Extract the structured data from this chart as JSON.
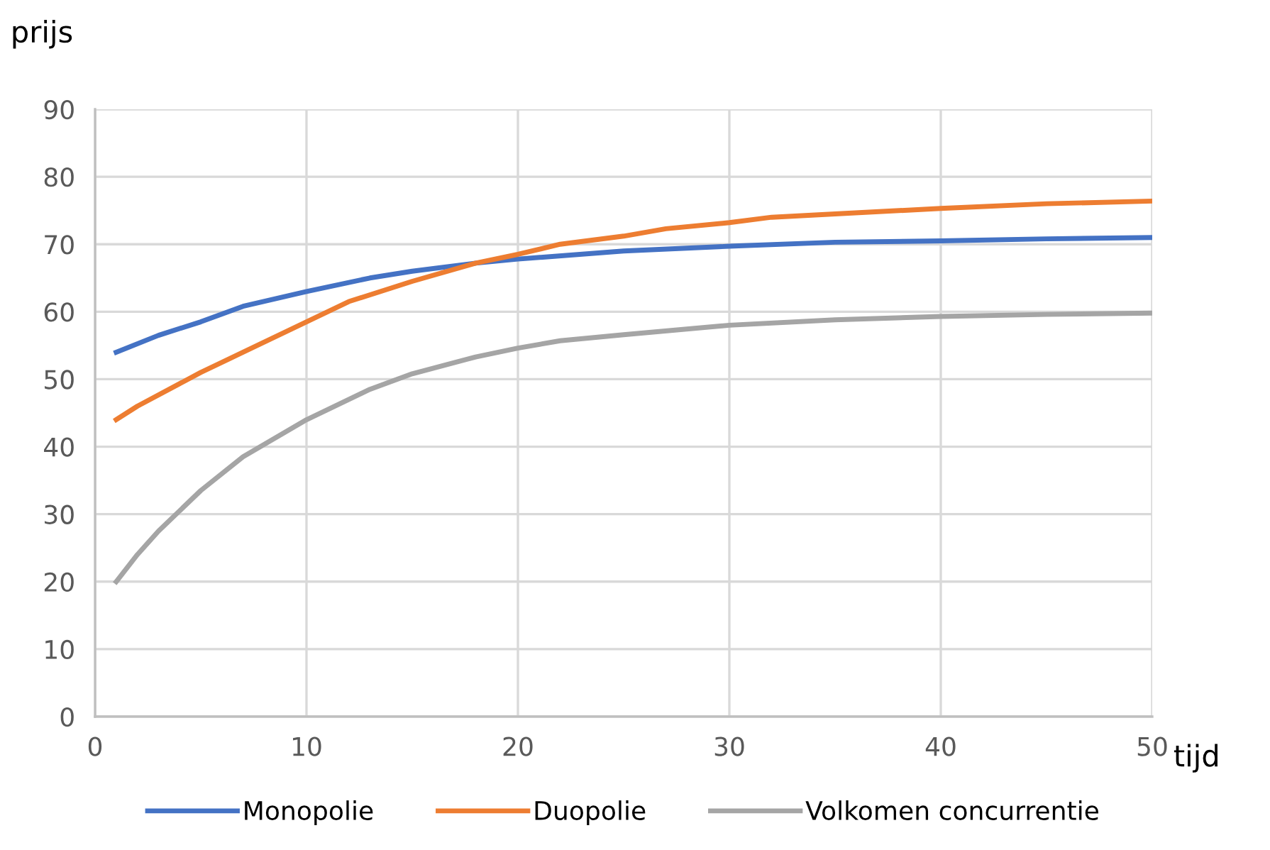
{
  "chart_data": {
    "type": "line",
    "xlabel": "tijd",
    "ylabel": "prijs",
    "xlim": [
      0,
      50
    ],
    "ylim": [
      0,
      90
    ],
    "xticks": [
      0,
      10,
      20,
      30,
      40,
      50
    ],
    "yticks": [
      0,
      10,
      20,
      30,
      40,
      50,
      60,
      70,
      80,
      90
    ],
    "grid": true,
    "legend": "bottom",
    "marker": "none",
    "line_style": "solid",
    "series": [
      {
        "name": "Monopolie",
        "color": "#4472c4",
        "x": [
          1,
          3,
          5,
          7,
          10,
          13,
          15,
          18,
          20,
          25,
          30,
          35,
          40,
          45,
          50
        ],
        "values": [
          54,
          56.5,
          58.5,
          60.8,
          63,
          65,
          66,
          67.2,
          67.8,
          69,
          69.7,
          70.3,
          70.5,
          70.8,
          71
        ]
      },
      {
        "name": "Duopolie",
        "color": "#ed7d31",
        "x": [
          1,
          2,
          5,
          7,
          10,
          12,
          15,
          18,
          20,
          22,
          25,
          27,
          30,
          32,
          35,
          40,
          45,
          50
        ],
        "values": [
          44,
          46,
          51,
          54,
          58.5,
          61.5,
          64.5,
          67.2,
          68.5,
          70,
          71.2,
          72.3,
          73.2,
          74,
          74.5,
          75.3,
          76,
          76.4
        ]
      },
      {
        "name": "Volkomen concurrentie",
        "color": "#a5a5a5",
        "x": [
          1,
          2,
          3,
          5,
          7,
          10,
          13,
          15,
          18,
          20,
          22,
          25,
          30,
          35,
          40,
          45,
          50
        ],
        "values": [
          20,
          24,
          27.5,
          33.5,
          38.5,
          44,
          48.5,
          50.8,
          53.3,
          54.6,
          55.7,
          56.6,
          58,
          58.8,
          59.3,
          59.6,
          59.8
        ]
      }
    ]
  }
}
